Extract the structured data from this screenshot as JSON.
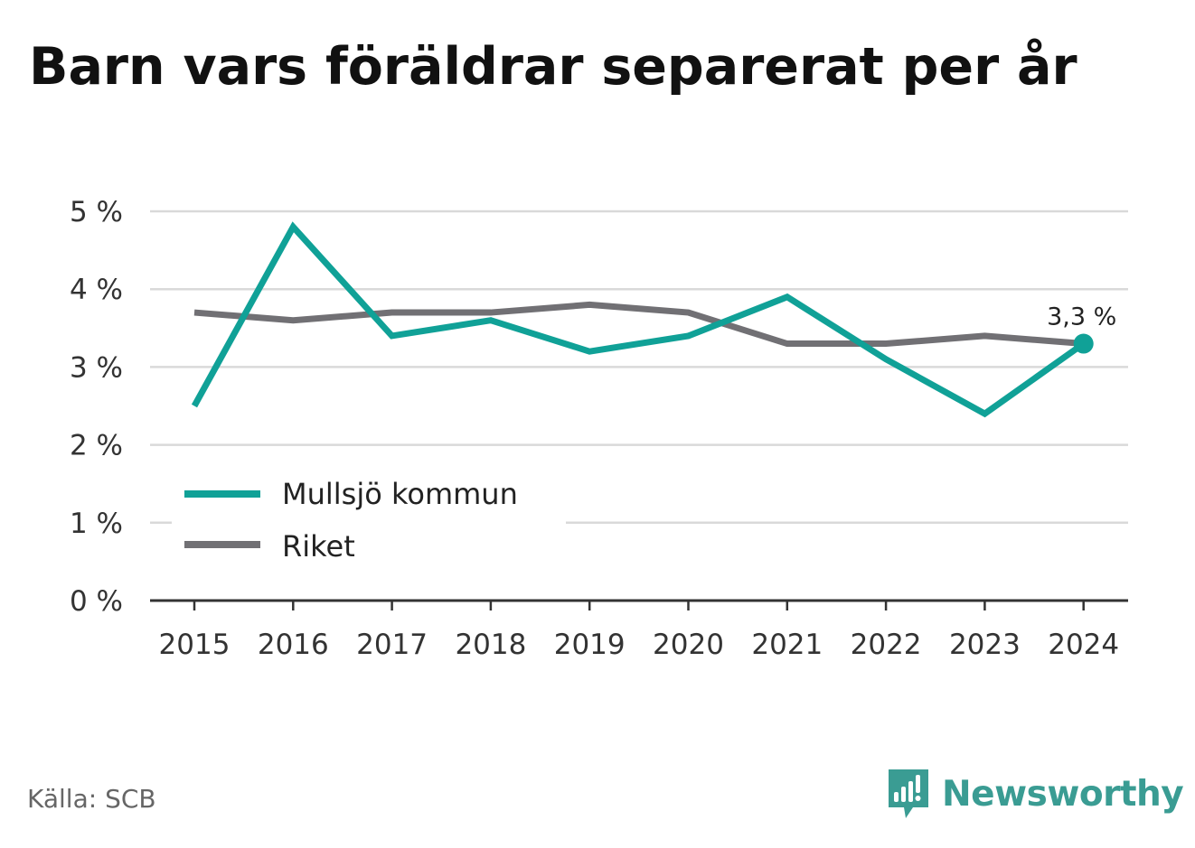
{
  "title": "Barn vars föräldrar separerat per år",
  "source": "Källa: SCB",
  "brand": {
    "name": "Newsworthy",
    "icon": "newsworthy-chart-bubble-icon",
    "color": "#3a9c93"
  },
  "chart_data": {
    "type": "line",
    "x": [
      "2015",
      "2016",
      "2017",
      "2018",
      "2019",
      "2020",
      "2021",
      "2022",
      "2023",
      "2024"
    ],
    "series": [
      {
        "name": "Mullsjö kommun",
        "color": "#10a197",
        "values": [
          2.5,
          4.8,
          3.4,
          3.6,
          3.2,
          3.4,
          3.9,
          3.1,
          2.4,
          3.3
        ]
      },
      {
        "name": "Riket",
        "color": "#717074",
        "values": [
          3.7,
          3.6,
          3.7,
          3.7,
          3.8,
          3.7,
          3.3,
          3.3,
          3.4,
          3.3
        ]
      }
    ],
    "ylim": [
      0,
      5
    ],
    "yticks": [
      "0 %",
      "1 %",
      "2 %",
      "3 %",
      "4 %",
      "5 %"
    ],
    "grid": true,
    "legend": "bottom-left",
    "annotation": {
      "series": "Mullsjö kommun",
      "x": "2024",
      "value": 3.3,
      "label": "3,3 %"
    }
  }
}
